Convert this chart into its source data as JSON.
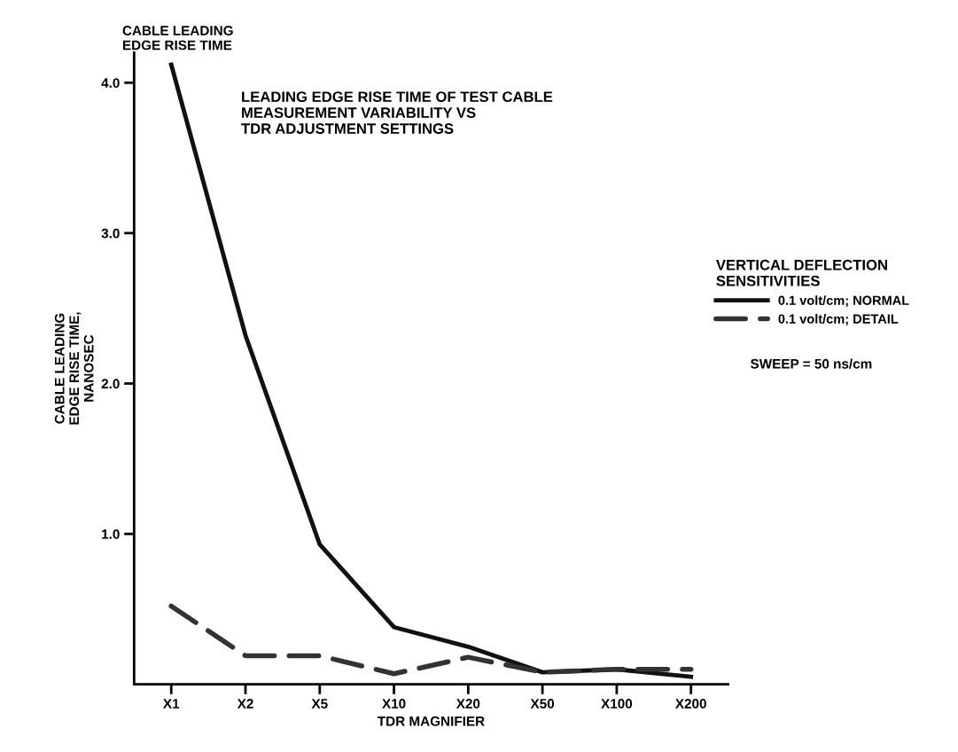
{
  "chart_data": {
    "type": "line",
    "title": "LEADING EDGE RISE TIME OF TEST CABLE\nMEASUREMENT VARIABILITY VS\nTDR ADJUSTMENT SETTINGS",
    "xlabel": "TDR MAGNIFIER",
    "ylabel": "CABLE LEADING\nEDGE RISE TIME,\nNANOSEC",
    "legend_title": "VERTICAL DEFLECTION\nSENSITIVITIES",
    "annotations": [
      "CABLE LEADING\nEDGE RISE TIME",
      "SWEEP = 50 ns/cm"
    ],
    "categories": [
      "X1",
      "X2",
      "X5",
      "X10",
      "X20",
      "X50",
      "X100",
      "X200"
    ],
    "series": [
      {
        "name": "0.1 volt/cm; NORMAL",
        "color": "#111111",
        "line_style": "solid",
        "values": [
          4.12,
          2.32,
          0.93,
          0.38,
          0.25,
          0.08,
          0.1,
          0.05
        ]
      },
      {
        "name": "0.1 volt/cm; DETAIL",
        "color": "#333333",
        "line_style": "dashed",
        "values": [
          0.52,
          0.19,
          0.19,
          0.07,
          0.18,
          0.08,
          0.1,
          0.1
        ]
      }
    ],
    "ylim": [
      0,
      4.2
    ],
    "yticks": [
      {
        "value": 1.0,
        "label": "1.0"
      },
      {
        "value": 2.0,
        "label": "2.0"
      },
      {
        "value": 3.0,
        "label": "3.0"
      },
      {
        "value": 4.0,
        "label": "4.0"
      }
    ],
    "grid": false,
    "legend": "right",
    "marker": "none"
  }
}
